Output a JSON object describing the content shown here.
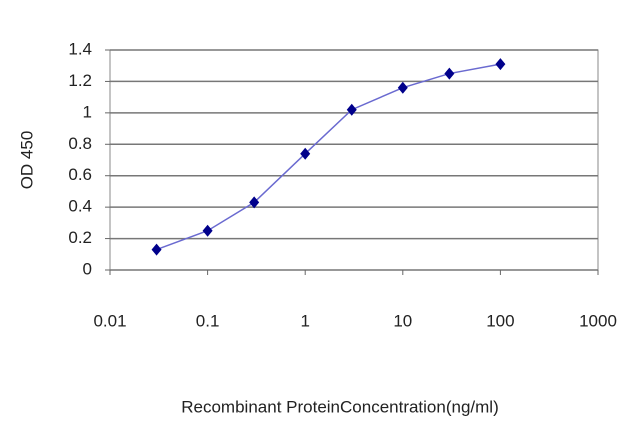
{
  "chart_data": {
    "type": "line",
    "x_label": "Recombinant ProteinConcentration(ng/ml)",
    "y_label": "OD 450",
    "xscale": "log",
    "grid": "y",
    "xlim": [
      0.01,
      1000
    ],
    "xticks": [
      0.01,
      0.1,
      1,
      10,
      100,
      1000
    ],
    "ylim": [
      0,
      1.4
    ],
    "yticks": [
      0,
      0.2,
      0.4,
      0.6,
      0.8,
      1,
      1.2,
      1.4
    ],
    "series": [
      {
        "color": "#00008b",
        "line_color": "#6a6ad0",
        "x": [
          0.03,
          0.1,
          0.3,
          1,
          3,
          10,
          30,
          100
        ],
        "values": [
          0.13,
          0.25,
          0.43,
          0.74,
          1.02,
          1.16,
          1.25,
          1.31
        ]
      }
    ]
  }
}
